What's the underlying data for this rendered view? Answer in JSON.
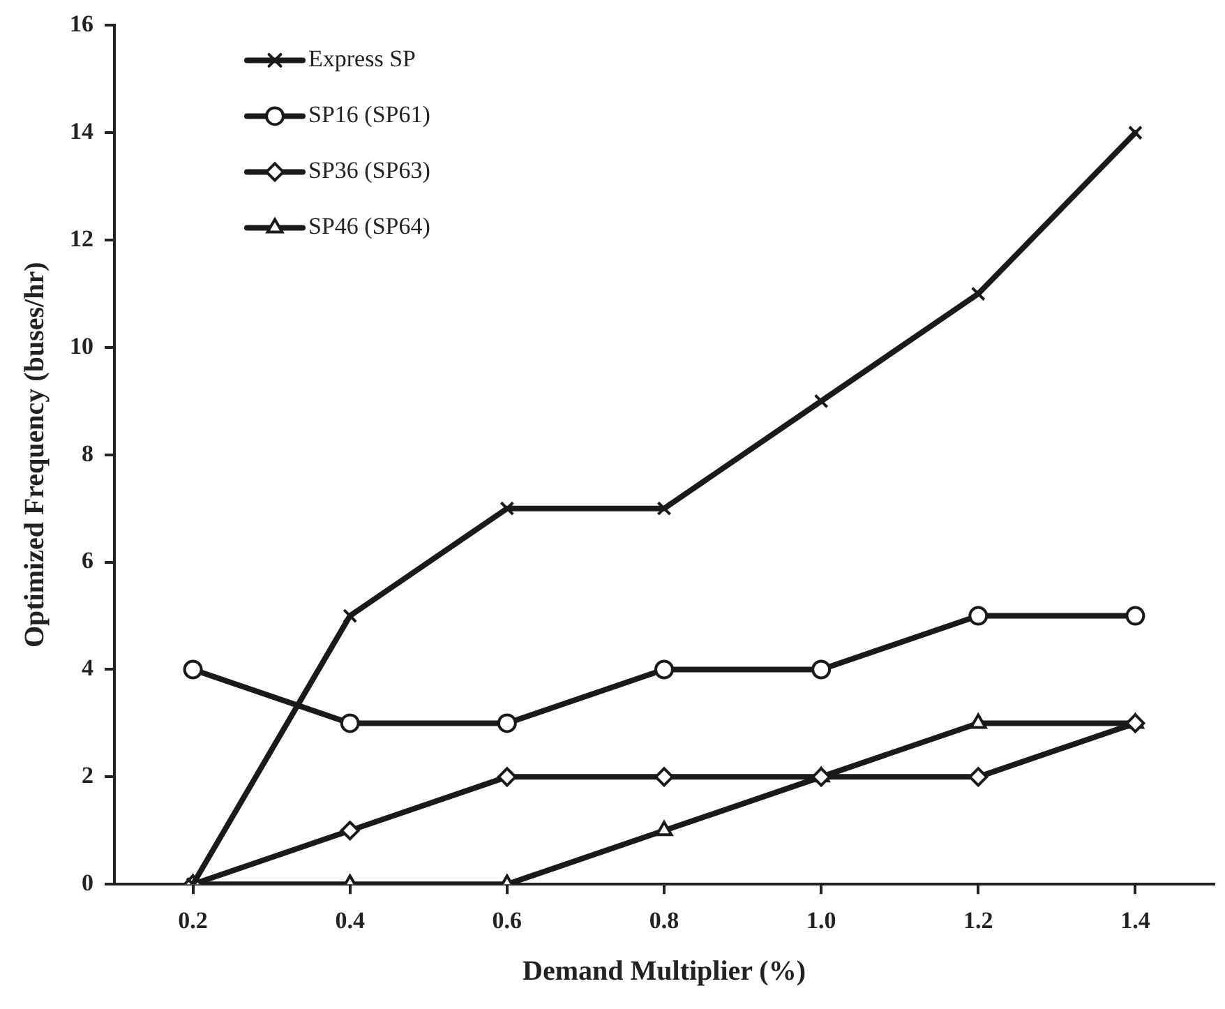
{
  "chart_data": {
    "type": "line",
    "xlabel": "Demand Multiplier (%)",
    "ylabel": "Optimized Frequency (buses/hr)",
    "x": [
      0.2,
      0.4,
      0.6,
      0.8,
      1.0,
      1.2,
      1.4
    ],
    "xlim": [
      0.1,
      1.5
    ],
    "xticks": [
      {
        "value": 0.2,
        "label": "0.2"
      },
      {
        "value": 0.4,
        "label": "0.4"
      },
      {
        "value": 0.6,
        "label": "0.6"
      },
      {
        "value": 0.8,
        "label": "0.8"
      },
      {
        "value": 1.0,
        "label": "1.0"
      },
      {
        "value": 1.2,
        "label": "1.2"
      },
      {
        "value": 1.4,
        "label": "1.4"
      }
    ],
    "ylim": [
      0,
      16
    ],
    "yticks": [
      0,
      2,
      4,
      6,
      8,
      10,
      12,
      14,
      16
    ],
    "grid": false,
    "legend": "top left",
    "line_style": "solid",
    "series": [
      {
        "name": "Express SP",
        "color": "#1a1a1a",
        "marker": "cross",
        "values": [
          0,
          5,
          7,
          7,
          9,
          11,
          14
        ]
      },
      {
        "name": "SP16 (SP61)",
        "color": "#1a1a1a",
        "marker": "circle",
        "values": [
          4,
          3,
          3,
          4,
          4,
          5,
          5
        ]
      },
      {
        "name": "SP36 (SP63)",
        "color": "#1a1a1a",
        "marker": "diamond",
        "values": [
          0,
          1,
          2,
          2,
          2,
          2,
          3
        ]
      },
      {
        "name": "SP46 (SP64)",
        "color": "#1a1a1a",
        "marker": "triangle",
        "values": [
          0,
          0,
          0,
          1,
          2,
          3,
          3
        ]
      }
    ]
  }
}
